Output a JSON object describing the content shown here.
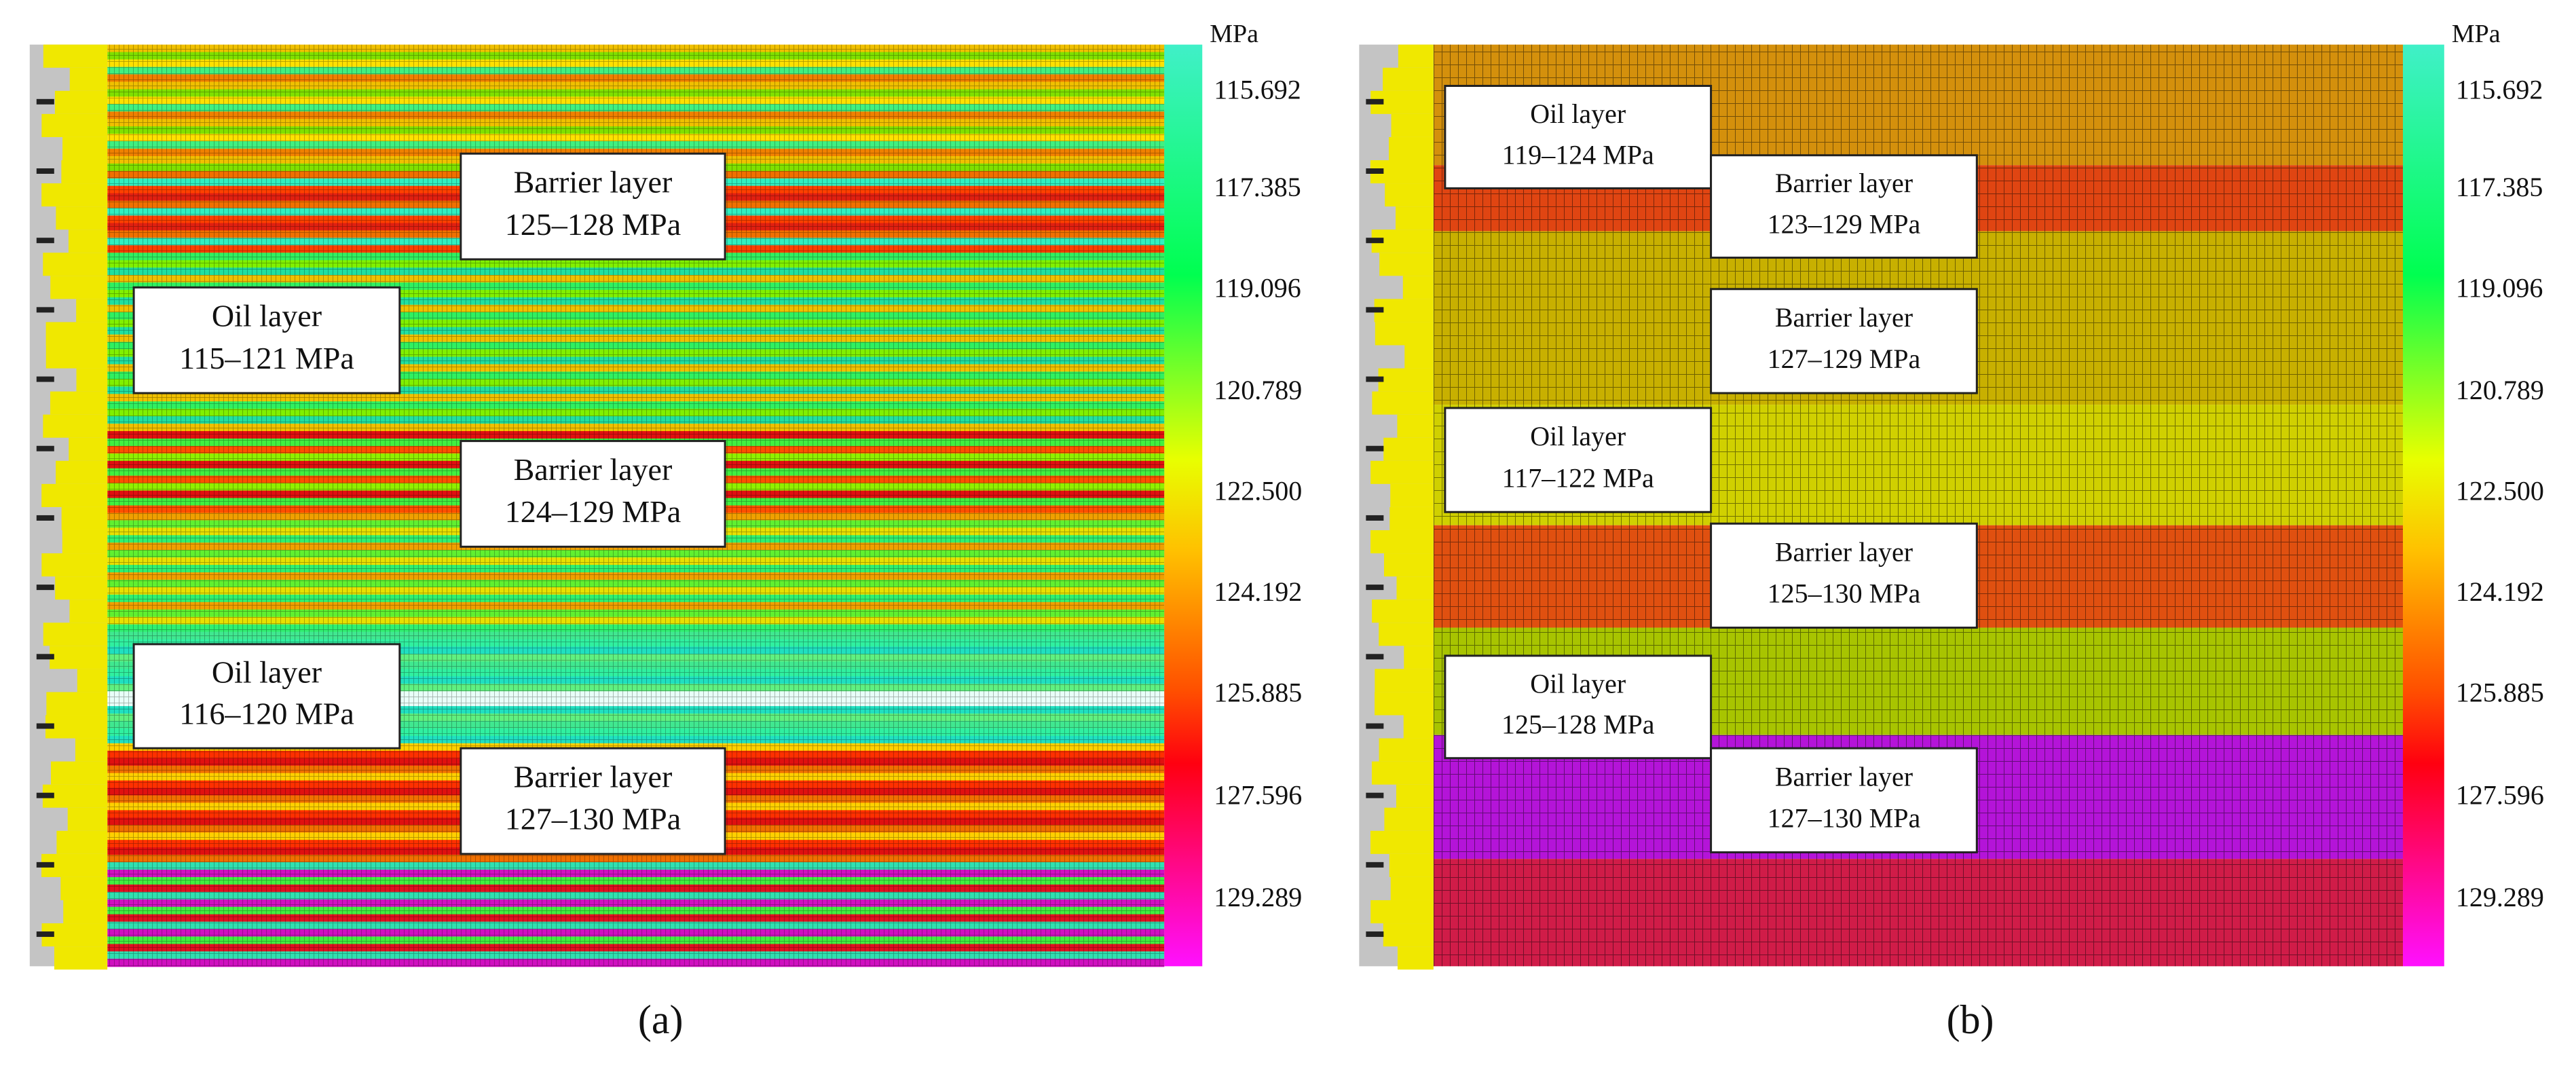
{
  "panels": [
    {
      "label": "(a)",
      "unit": "MPa",
      "colorbar_ticks": [
        "115.692",
        "117.385",
        "119.096",
        "120.789",
        "122.500",
        "124.192",
        "125.885",
        "127.596",
        "129.289"
      ],
      "annotations": [
        {
          "name": "Barrier layer",
          "range": "125–128 MPa"
        },
        {
          "name": "Oil layer",
          "range": "115–121 MPa"
        },
        {
          "name": "Barrier layer",
          "range": "124–129 MPa"
        },
        {
          "name": "Oil layer",
          "range": "116–120 MPa"
        },
        {
          "name": "Barrier layer",
          "range": "127–130 MPa"
        }
      ]
    },
    {
      "label": "(b)",
      "unit": "MPa",
      "colorbar_ticks": [
        "115.692",
        "117.385",
        "119.096",
        "120.789",
        "122.500",
        "124.192",
        "125.885",
        "127.596",
        "129.289"
      ],
      "annotations": [
        {
          "name": "Oil layer",
          "range": "119–124 MPa"
        },
        {
          "name": "Barrier layer",
          "range": "123–129 MPa"
        },
        {
          "name": "Barrier layer",
          "range": "127–129 MPa"
        },
        {
          "name": "Oil layer",
          "range": "117–122 MPa"
        },
        {
          "name": "Barrier layer",
          "range": "125–130 MPa"
        },
        {
          "name": "Oil layer",
          "range": "125–128 MPa"
        },
        {
          "name": "Barrier layer",
          "range": "127–130 MPa"
        }
      ]
    }
  ]
}
